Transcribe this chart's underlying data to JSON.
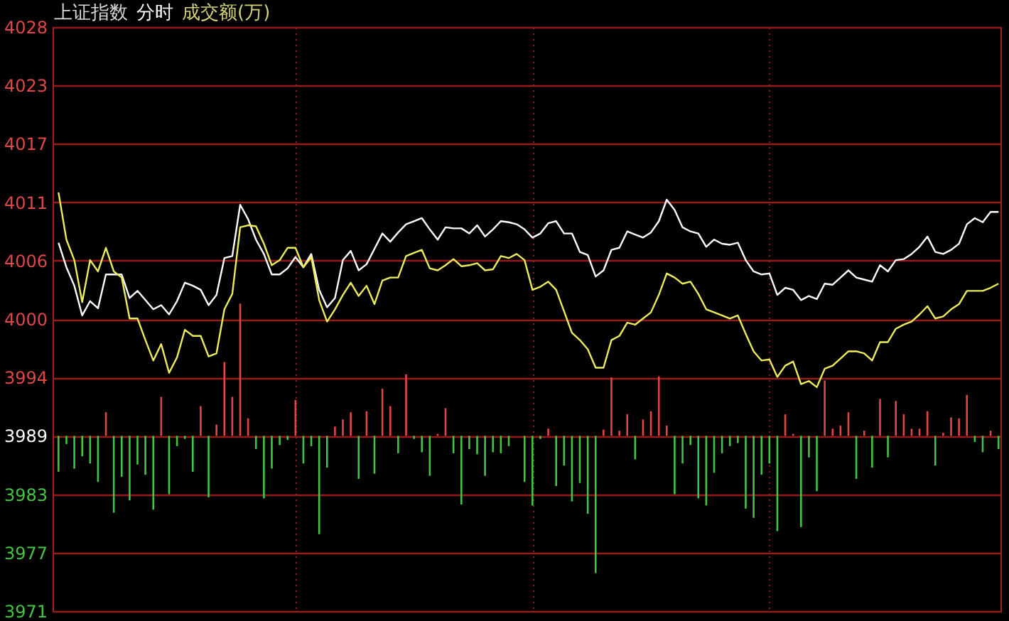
{
  "chart_data": {
    "type": "line",
    "title": "上证指数",
    "annotations": [
      "分时",
      "成交额(万)"
    ],
    "categories": [
      null,
      null,
      null,
      null,
      null,
      null,
      null,
      null,
      null,
      null,
      null,
      null,
      null,
      null,
      null,
      null,
      null,
      null,
      null,
      null,
      null,
      null,
      null,
      null,
      null,
      null,
      null,
      null,
      null,
      null,
      null,
      null,
      null,
      null,
      null,
      null,
      null,
      null,
      null,
      null,
      null,
      null,
      null,
      null,
      null,
      null,
      null,
      null,
      null,
      null,
      null,
      null,
      null,
      null,
      null,
      null,
      null,
      null,
      null,
      null,
      null,
      null,
      null,
      null,
      null,
      null,
      null,
      null,
      null,
      null,
      null,
      null,
      null,
      null,
      null,
      null,
      null,
      null,
      null,
      null,
      null,
      null,
      null,
      null,
      null,
      null,
      null,
      null,
      null,
      null,
      null,
      null,
      null,
      null,
      null,
      null,
      null,
      null,
      null,
      null,
      null,
      null,
      null,
      null,
      null,
      null,
      null,
      null,
      null,
      null,
      null,
      null,
      null,
      null,
      null,
      null,
      null,
      null,
      null,
      null
    ],
    "ylim": [
      3971.45,
      4028.45
    ],
    "yticks": [
      {
        "value": 3971.45,
        "label": "3971"
      },
      {
        "value": 3977.15,
        "label": "3977"
      },
      {
        "value": 3982.85,
        "label": "3983"
      },
      {
        "value": 3988.55,
        "label": "3989"
      },
      {
        "value": 3994.25,
        "label": "3994"
      },
      {
        "value": 3999.95,
        "label": "4000"
      },
      {
        "value": 4005.65,
        "label": "4006"
      },
      {
        "value": 4011.35,
        "label": "4011"
      },
      {
        "value": 4017.05,
        "label": "4017"
      },
      {
        "value": 4022.75,
        "label": "4023"
      },
      {
        "value": 4028.45,
        "label": "4028"
      }
    ],
    "tick_labels": "y",
    "grid": true,
    "series": [
      {
        "type": "bar",
        "values": [
          -3.5,
          -0.8,
          -3.2,
          -2.0,
          -2.7,
          -4.5,
          2.3,
          -7.5,
          -4.0,
          -6.3,
          -2.8,
          -3.8,
          -7.2,
          3.8,
          -5.7,
          -1.0,
          -0.3,
          -3.5,
          2.9,
          -6.0,
          1.1,
          7.2,
          3.8,
          12.9,
          1.7,
          -1.3,
          -6.1,
          -3.2,
          -0.9,
          -0.4,
          3.5,
          -2.7,
          -1.0,
          -9.6,
          -3.1,
          0.9,
          1.6,
          2.3,
          -4.2,
          2.4,
          -3.7,
          4.6,
          2.9,
          -1.7,
          6.0,
          -0.3,
          -1.6,
          -3.9,
          0.2,
          2.7,
          -1.7,
          -6.7,
          -1.3,
          -1.8,
          -3.9,
          -1.6,
          -1.7,
          -1.0,
          null,
          -4.5,
          -6.8,
          -0.3,
          0.7,
          -4.9,
          -2.9,
          -6.4,
          -4.6,
          -7.6,
          -13.4,
          0.6,
          5.7,
          0.5,
          2.1,
          -2.3,
          1.6,
          2.4,
          5.8,
          1.0,
          -5.7,
          -2.7,
          -0.9,
          -6.1,
          -6.8,
          -3.6,
          -1.7,
          -1.0,
          -0.7,
          -7.1,
          -8.0,
          -3.8,
          -2.7,
          -9.3,
          2.1,
          0.2,
          -8.9,
          -2.1,
          -5.4,
          5.4,
          0.7,
          1.0,
          2.3,
          -4.2,
          0.5,
          -3.1,
          3.6,
          -2.1,
          3.4,
          2.1,
          0.7,
          0.7,
          2.4,
          -2.9,
          0.3,
          1.8,
          1.7,
          4.0,
          -0.6,
          -1.6,
          0.5,
          -1.3
        ],
        "base": [
          3988.55,
          3988.55,
          3988.55,
          3988.55,
          3988.55,
          3988.55,
          3988.55,
          3988.55,
          3988.55,
          3988.55,
          3988.55,
          3988.55,
          3988.55,
          3988.55,
          3988.55,
          3988.55,
          3988.55,
          3988.55,
          3988.55,
          3988.55,
          3988.55,
          3988.55,
          3988.55,
          3988.55,
          3988.55,
          3988.55,
          3988.55,
          3988.55,
          3988.55,
          3988.55,
          3988.55,
          3988.55,
          3988.55,
          3988.55,
          3988.55,
          3988.55,
          3988.55,
          3988.55,
          3988.55,
          3988.55,
          3988.55,
          3988.55,
          3988.55,
          3988.55,
          3988.55,
          3988.55,
          3988.55,
          3988.55,
          3988.55,
          3988.55,
          3988.55,
          3988.55,
          3988.55,
          3988.55,
          3988.55,
          3988.55,
          3988.55,
          3988.55,
          null,
          3988.55,
          3988.55,
          3988.55,
          3988.55,
          3988.55,
          3988.55,
          3988.55,
          3988.55,
          3988.55,
          3988.55,
          3988.55,
          3988.55,
          3988.55,
          3988.55,
          3988.55,
          3988.55,
          3988.55,
          3988.55,
          3988.55,
          3988.55,
          3988.55,
          3988.55,
          3988.55,
          3988.55,
          3988.55,
          3988.55,
          3988.55,
          3988.55,
          3988.55,
          3988.55,
          3988.55,
          3988.55,
          3988.55,
          3988.55,
          3988.55,
          3988.55,
          3988.55,
          3988.55,
          3988.55,
          3988.55,
          3988.55,
          3988.55,
          3988.55,
          3988.55,
          3988.55,
          3988.55,
          3988.55,
          3988.55,
          3988.55,
          3988.55,
          3988.55,
          3988.55,
          3988.55,
          3988.55,
          3988.55,
          3988.55,
          3988.55,
          3988.55,
          3988.55,
          3988.55,
          3988.55
        ],
        "colors": [
          "#44c444",
          "#44c444",
          "#44c444",
          "#44c444",
          "#44c444",
          "#44c444",
          "#e04848",
          "#44c444",
          "#44c444",
          "#44c444",
          "#44c444",
          "#44c444",
          "#44c444",
          "#e04848",
          "#44c444",
          "#44c444",
          "#44c444",
          "#44c444",
          "#e04848",
          "#44c444",
          "#e04848",
          "#e04848",
          "#e04848",
          "#e04848",
          "#e04848",
          "#44c444",
          "#44c444",
          "#44c444",
          "#44c444",
          "#44c444",
          "#e04848",
          "#44c444",
          "#44c444",
          "#44c444",
          "#44c444",
          "#e04848",
          "#e04848",
          "#e04848",
          "#44c444",
          "#e04848",
          "#44c444",
          "#e04848",
          "#e04848",
          "#44c444",
          "#e04848",
          "#44c444",
          "#44c444",
          "#44c444",
          "#e04848",
          "#e04848",
          "#44c444",
          "#44c444",
          "#44c444",
          "#44c444",
          "#44c444",
          "#44c444",
          "#44c444",
          "#44c444",
          "#44c444",
          "#44c444",
          "#44c444",
          "#44c444",
          "#e04848",
          "#44c444",
          "#44c444",
          "#44c444",
          "#44c444",
          "#44c444",
          "#44c444",
          "#e04848",
          "#e04848",
          "#e04848",
          "#e04848",
          "#44c444",
          "#e04848",
          "#e04848",
          "#e04848",
          "#e04848",
          "#44c444",
          "#44c444",
          "#44c444",
          "#44c444",
          "#44c444",
          "#44c444",
          "#44c444",
          "#44c444",
          "#44c444",
          "#44c444",
          "#44c444",
          "#44c444",
          "#44c444",
          "#44c444",
          "#e04848",
          "#e04848",
          "#44c444",
          "#44c444",
          "#44c444",
          "#e04848",
          "#e04848",
          "#e04848",
          "#e04848",
          "#44c444",
          "#e04848",
          "#44c444",
          "#e04848",
          "#44c444",
          "#e04848",
          "#e04848",
          "#e04848",
          "#e04848",
          "#e04848",
          "#44c444",
          "#e04848",
          "#e04848",
          "#e04848",
          "#e04848",
          "#44c444",
          "#44c444",
          "#e04848",
          "#44c444"
        ]
      },
      {
        "color": "#ffffff",
        "values": [
          4007.4,
          4005.0,
          4003.2,
          4000.3,
          4001.7,
          4001.0,
          4004.3,
          4004.3,
          4004.3,
          4002.0,
          4002.7,
          4001.8,
          4000.9,
          4001.3,
          4000.4,
          4001.7,
          4003.5,
          4003.2,
          4002.8,
          4001.3,
          4002.3,
          4005.9,
          4006.1,
          4011.1,
          4009.7,
          4007.7,
          4006.3,
          4004.3,
          4004.3,
          4004.9,
          4006.0,
          4005.0,
          4006.3,
          4002.8,
          4001.1,
          4002.0,
          4005.7,
          4006.6,
          4004.7,
          4005.3,
          4006.8,
          4008.3,
          4007.5,
          4008.4,
          4009.2,
          4009.5,
          4009.8,
          4008.7,
          4007.7,
          4008.9,
          4008.8,
          4008.8,
          4008.3,
          4009.1,
          4008.0,
          4008.7,
          4009.5,
          4009.4,
          4009.2,
          4008.7,
          4007.9,
          4008.3,
          4009.3,
          4009.5,
          4008.3,
          4008.3,
          4006.5,
          4006.2,
          4004.1,
          4004.7,
          4006.7,
          4006.9,
          4008.5,
          4008.2,
          4007.9,
          4008.4,
          4009.5,
          4011.6,
          4010.6,
          4008.9,
          4008.5,
          4008.3,
          4007.0,
          4007.7,
          4007.3,
          4007.2,
          4007.4,
          4005.7,
          4004.6,
          4004.3,
          4004.4,
          4002.3,
          4003.0,
          4002.8,
          4001.8,
          4002.2,
          4001.9,
          4003.4,
          4003.3,
          4004.0,
          4004.7,
          4004.0,
          4003.8,
          4003.6,
          4005.2,
          4004.6,
          4005.7,
          4005.8,
          4006.3,
          4007.0,
          4008.0,
          4006.5,
          4006.3,
          4006.7,
          4007.3,
          4009.2,
          4009.8,
          4009.4,
          4010.4,
          4010.4
        ]
      },
      {
        "color": "#ecec5c",
        "values": [
          4012.3,
          4007.7,
          4005.7,
          4001.6,
          4005.7,
          4004.6,
          4006.9,
          4004.6,
          4004.0,
          4000.0,
          4000.0,
          3997.9,
          3995.9,
          3997.5,
          3994.7,
          3996.2,
          3998.9,
          3998.3,
          3998.3,
          3996.3,
          3996.6,
          4000.9,
          4002.4,
          4008.9,
          4009.1,
          4009.0,
          4007.3,
          4005.2,
          4005.7,
          4006.9,
          4006.9,
          4005.0,
          4006.0,
          4001.8,
          3999.7,
          4000.9,
          4002.3,
          4003.5,
          4002.2,
          4003.2,
          4001.4,
          4003.7,
          4004.0,
          4004.0,
          4006.1,
          4006.4,
          4006.7,
          4004.9,
          4004.7,
          4005.2,
          4005.8,
          4005.1,
          4005.2,
          4005.4,
          4004.7,
          4004.8,
          4006.1,
          4005.9,
          4006.3,
          4005.7,
          4002.8,
          4003.1,
          4003.6,
          4002.8,
          4000.7,
          3998.6,
          3997.9,
          3997.0,
          3995.2,
          3995.2,
          3997.9,
          3998.3,
          3999.6,
          3999.4,
          4000.0,
          4000.6,
          4002.3,
          4004.4,
          4004.0,
          4003.4,
          4003.6,
          4002.4,
          4000.9,
          4000.6,
          4000.3,
          4000.0,
          4000.3,
          3998.5,
          3996.8,
          3995.9,
          3996.0,
          3994.3,
          3995.4,
          3995.8,
          3993.6,
          3993.9,
          3993.3,
          3995.1,
          3995.4,
          3996.1,
          3996.8,
          3996.8,
          3996.6,
          3995.9,
          3997.7,
          3997.7,
          3999.0,
          3999.4,
          3999.7,
          4000.4,
          4001.2,
          4000.0,
          4000.2,
          4000.9,
          4001.4,
          4002.7,
          4002.7,
          4002.7,
          4003.0,
          4003.4
        ]
      }
    ]
  }
}
